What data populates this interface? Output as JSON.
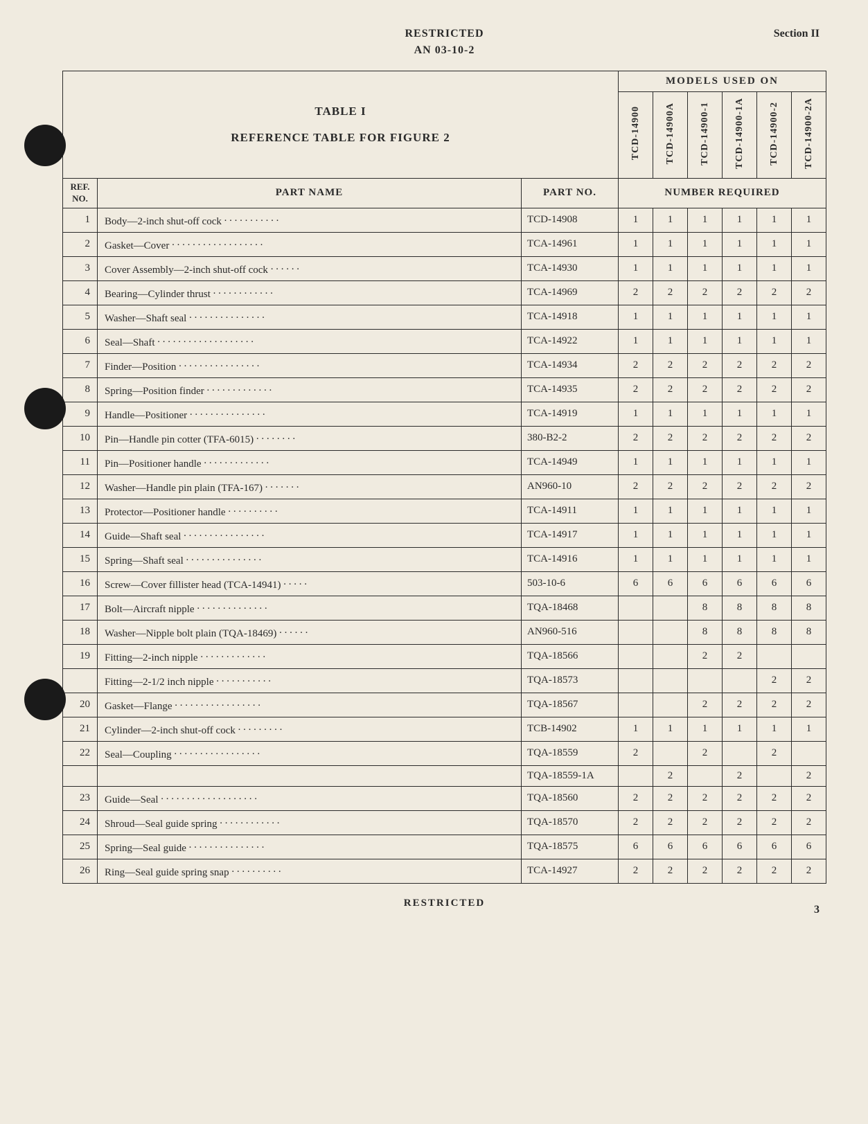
{
  "header": {
    "classification": "RESTRICTED",
    "docNumber": "AN 03-10-2",
    "section": "Section II"
  },
  "table": {
    "titleLine1": "TABLE I",
    "titleLine2": "REFERENCE TABLE FOR FIGURE 2",
    "modelsHeader": "MODELS USED ON",
    "refHeader": "REF. NO.",
    "partNameHeader": "PART NAME",
    "partNoHeader": "PART NO.",
    "numReqHeader": "NUMBER REQUIRED",
    "models": [
      "TCD-14900",
      "TCD-14900A",
      "TCD-14900-1",
      "TCD-14900-1A",
      "TCD-14900-2",
      "TCD-14900-2A"
    ],
    "rows": [
      {
        "ref": "1",
        "name": "Body—2-inch shut-off cock",
        "partno": "TCD-14908",
        "qty": [
          "1",
          "1",
          "1",
          "1",
          "1",
          "1"
        ]
      },
      {
        "ref": "2",
        "name": "Gasket—Cover",
        "partno": "TCA-14961",
        "qty": [
          "1",
          "1",
          "1",
          "1",
          "1",
          "1"
        ]
      },
      {
        "ref": "3",
        "name": "Cover Assembly—2-inch shut-off cock",
        "partno": "TCA-14930",
        "qty": [
          "1",
          "1",
          "1",
          "1",
          "1",
          "1"
        ]
      },
      {
        "ref": "4",
        "name": "Bearing—Cylinder thrust",
        "partno": "TCA-14969",
        "qty": [
          "2",
          "2",
          "2",
          "2",
          "2",
          "2"
        ]
      },
      {
        "ref": "5",
        "name": "Washer—Shaft seal",
        "partno": "TCA-14918",
        "qty": [
          "1",
          "1",
          "1",
          "1",
          "1",
          "1"
        ]
      },
      {
        "ref": "6",
        "name": "Seal—Shaft",
        "partno": "TCA-14922",
        "qty": [
          "1",
          "1",
          "1",
          "1",
          "1",
          "1"
        ]
      },
      {
        "ref": "7",
        "name": "Finder—Position",
        "partno": "TCA-14934",
        "qty": [
          "2",
          "2",
          "2",
          "2",
          "2",
          "2"
        ]
      },
      {
        "ref": "8",
        "name": "Spring—Position finder",
        "partno": "TCA-14935",
        "qty": [
          "2",
          "2",
          "2",
          "2",
          "2",
          "2"
        ]
      },
      {
        "ref": "9",
        "name": "Handle—Positioner",
        "partno": "TCA-14919",
        "qty": [
          "1",
          "1",
          "1",
          "1",
          "1",
          "1"
        ]
      },
      {
        "ref": "10",
        "name": "Pin—Handle pin cotter (TFA-6015)",
        "partno": "380-B2-2",
        "qty": [
          "2",
          "2",
          "2",
          "2",
          "2",
          "2"
        ]
      },
      {
        "ref": "11",
        "name": "Pin—Positioner handle",
        "partno": "TCA-14949",
        "qty": [
          "1",
          "1",
          "1",
          "1",
          "1",
          "1"
        ]
      },
      {
        "ref": "12",
        "name": "Washer—Handle pin plain (TFA-167)",
        "partno": "AN960-10",
        "qty": [
          "2",
          "2",
          "2",
          "2",
          "2",
          "2"
        ]
      },
      {
        "ref": "13",
        "name": "Protector—Positioner handle",
        "partno": "TCA-14911",
        "qty": [
          "1",
          "1",
          "1",
          "1",
          "1",
          "1"
        ]
      },
      {
        "ref": "14",
        "name": "Guide—Shaft seal",
        "partno": "TCA-14917",
        "qty": [
          "1",
          "1",
          "1",
          "1",
          "1",
          "1"
        ]
      },
      {
        "ref": "15",
        "name": "Spring—Shaft seal",
        "partno": "TCA-14916",
        "qty": [
          "1",
          "1",
          "1",
          "1",
          "1",
          "1"
        ]
      },
      {
        "ref": "16",
        "name": "Screw—Cover fillister head (TCA-14941)",
        "partno": "503-10-6",
        "qty": [
          "6",
          "6",
          "6",
          "6",
          "6",
          "6"
        ]
      },
      {
        "ref": "17",
        "name": "Bolt—Aircraft nipple",
        "partno": "TQA-18468",
        "qty": [
          "",
          "",
          "8",
          "8",
          "8",
          "8"
        ]
      },
      {
        "ref": "18",
        "name": "Washer—Nipple bolt plain (TQA-18469)",
        "partno": "AN960-516",
        "qty": [
          "",
          "",
          "8",
          "8",
          "8",
          "8"
        ]
      },
      {
        "ref": "19",
        "name": "Fitting—2-inch nipple",
        "partno": "TQA-18566",
        "qty": [
          "",
          "",
          "2",
          "2",
          "",
          ""
        ]
      },
      {
        "ref": "",
        "name": "Fitting—2-1/2 inch nipple",
        "partno": "TQA-18573",
        "qty": [
          "",
          "",
          "",
          "",
          "2",
          "2"
        ]
      },
      {
        "ref": "20",
        "name": "Gasket—Flange",
        "partno": "TQA-18567",
        "qty": [
          "",
          "",
          "2",
          "2",
          "2",
          "2"
        ]
      },
      {
        "ref": "21",
        "name": "Cylinder—2-inch shut-off cock",
        "partno": "TCB-14902",
        "qty": [
          "1",
          "1",
          "1",
          "1",
          "1",
          "1"
        ]
      },
      {
        "ref": "22",
        "name": "Seal—Coupling",
        "partno": "TQA-18559",
        "qty": [
          "2",
          "",
          "2",
          "",
          "2",
          ""
        ]
      },
      {
        "ref": "",
        "name": "",
        "partno": "TQA-18559-1A",
        "qty": [
          "",
          "2",
          "",
          "2",
          "",
          "2"
        ]
      },
      {
        "ref": "23",
        "name": "Guide—Seal",
        "partno": "TQA-18560",
        "qty": [
          "2",
          "2",
          "2",
          "2",
          "2",
          "2"
        ]
      },
      {
        "ref": "24",
        "name": "Shroud—Seal guide spring",
        "partno": "TQA-18570",
        "qty": [
          "2",
          "2",
          "2",
          "2",
          "2",
          "2"
        ]
      },
      {
        "ref": "25",
        "name": "Spring—Seal guide",
        "partno": "TQA-18575",
        "qty": [
          "6",
          "6",
          "6",
          "6",
          "6",
          "6"
        ]
      },
      {
        "ref": "26",
        "name": "Ring—Seal guide spring snap",
        "partno": "TCA-14927",
        "qty": [
          "2",
          "2",
          "2",
          "2",
          "2",
          "2"
        ]
      }
    ]
  },
  "footer": {
    "classification": "RESTRICTED",
    "pageNumber": "3"
  },
  "style": {
    "dotLeaderWidth": 48
  }
}
